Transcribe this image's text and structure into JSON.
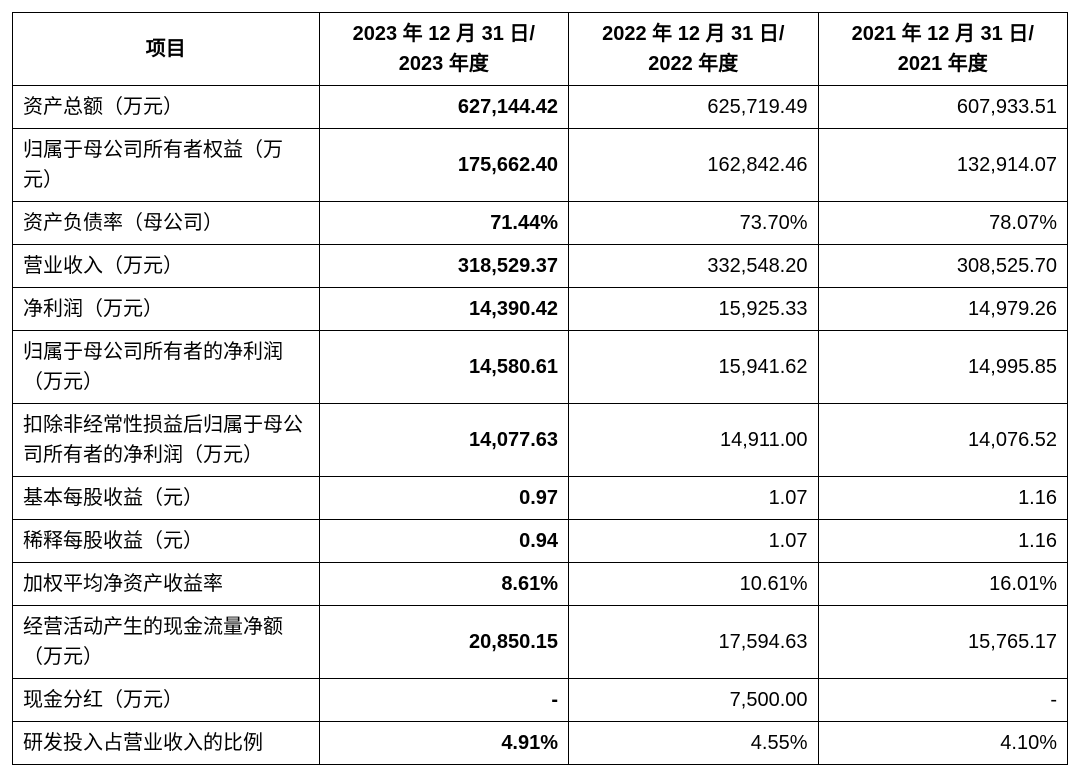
{
  "type": "table",
  "background_color": "#ffffff",
  "border_color": "#000000",
  "text_color": "#000000",
  "font_size": 20,
  "columns": [
    {
      "header": "项目",
      "width": "29%",
      "align": "center"
    },
    {
      "header": "2023 年 12 月 31 日/ 2023 年度",
      "width": "23.6%",
      "align": "center",
      "bold_data": true
    },
    {
      "header": "2022 年 12 月 31 日/ 2022 年度",
      "width": "23.6%",
      "align": "center",
      "bold_data": false
    },
    {
      "header": "2021 年 12 月 31 日/ 2021 年度",
      "width": "23.6%",
      "align": "center",
      "bold_data": false
    }
  ],
  "rows": [
    {
      "item": "资产总额（万元）",
      "c2023": "627,144.42",
      "c2022": "625,719.49",
      "c2021": "607,933.51"
    },
    {
      "item": "归属于母公司所有者权益（万元）",
      "c2023": "175,662.40",
      "c2022": "162,842.46",
      "c2021": "132,914.07"
    },
    {
      "item": "资产负债率（母公司）",
      "c2023": "71.44%",
      "c2022": "73.70%",
      "c2021": "78.07%"
    },
    {
      "item": "营业收入（万元）",
      "c2023": "318,529.37",
      "c2022": "332,548.20",
      "c2021": "308,525.70"
    },
    {
      "item": "净利润（万元）",
      "c2023": "14,390.42",
      "c2022": "15,925.33",
      "c2021": "14,979.26"
    },
    {
      "item": "归属于母公司所有者的净利润（万元）",
      "c2023": "14,580.61",
      "c2022": "15,941.62",
      "c2021": "14,995.85"
    },
    {
      "item": "扣除非经常性损益后归属于母公司所有者的净利润（万元）",
      "c2023": "14,077.63",
      "c2022": "14,911.00",
      "c2021": "14,076.52"
    },
    {
      "item": "基本每股收益（元）",
      "c2023": "0.97",
      "c2022": "1.07",
      "c2021": "1.16"
    },
    {
      "item": "稀释每股收益（元）",
      "c2023": "0.94",
      "c2022": "1.07",
      "c2021": "1.16"
    },
    {
      "item": "加权平均净资产收益率",
      "c2023": "8.61%",
      "c2022": "10.61%",
      "c2021": "16.01%"
    },
    {
      "item": "经营活动产生的现金流量净额（万元）",
      "c2023": "20,850.15",
      "c2022": "17,594.63",
      "c2021": "15,765.17"
    },
    {
      "item": "现金分红（万元）",
      "c2023": "-",
      "c2022": "7,500.00",
      "c2021": "-"
    },
    {
      "item": "研发投入占营业收入的比例",
      "c2023": "4.91%",
      "c2022": "4.55%",
      "c2021": "4.10%"
    }
  ]
}
